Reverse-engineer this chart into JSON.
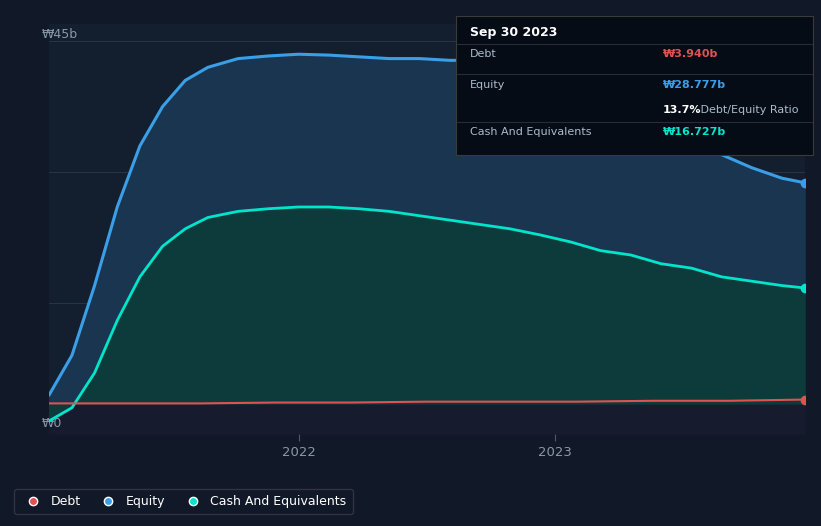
{
  "background_color": "#111827",
  "plot_bg_color": "#131e2e",
  "ylabel_45b": "₩45b",
  "ylabel_0": "₩0",
  "x_tick_labels": [
    "2022",
    "2023"
  ],
  "equity_color": "#3b9fe8",
  "cash_color": "#00e5cc",
  "debt_color": "#e05252",
  "equity_fill_color": "#1a3a5c",
  "cash_fill_color": "#0d3a3a",
  "grid_color": "#2a3a4a",
  "tooltip_bg": "#050c15",
  "tooltip_border": "#3a3a3a",
  "tooltip_title": "Sep 30 2023",
  "tooltip_debt_label": "Debt",
  "tooltip_debt_value": "₩3.940b",
  "tooltip_equity_label": "Equity",
  "tooltip_equity_value": "₩28.777b",
  "tooltip_ratio_bold": "13.7%",
  "tooltip_ratio_rest": " Debt/Equity Ratio",
  "tooltip_cash_label": "Cash And Equivalents",
  "tooltip_cash_value": "₩16.727b",
  "legend_labels": [
    "Debt",
    "Equity",
    "Cash And Equivalents"
  ],
  "y_min": 0,
  "y_max": 47,
  "equity_x": [
    0.0,
    0.03,
    0.06,
    0.09,
    0.12,
    0.15,
    0.18,
    0.21,
    0.25,
    0.29,
    0.33,
    0.37,
    0.41,
    0.45,
    0.49,
    0.53,
    0.57,
    0.61,
    0.65,
    0.69,
    0.73,
    0.77,
    0.81,
    0.85,
    0.89,
    0.93,
    0.97,
    1.0
  ],
  "equity_y": [
    4.5,
    9.0,
    17.0,
    26.0,
    33.0,
    37.5,
    40.5,
    42.0,
    43.0,
    43.3,
    43.5,
    43.4,
    43.2,
    43.0,
    43.0,
    42.8,
    42.8,
    42.5,
    42.0,
    41.2,
    40.0,
    38.5,
    36.5,
    34.0,
    32.0,
    30.5,
    29.3,
    28.777
  ],
  "cash_x": [
    0.0,
    0.03,
    0.06,
    0.09,
    0.12,
    0.15,
    0.18,
    0.21,
    0.25,
    0.29,
    0.33,
    0.37,
    0.41,
    0.45,
    0.49,
    0.53,
    0.57,
    0.61,
    0.65,
    0.69,
    0.73,
    0.77,
    0.81,
    0.85,
    0.89,
    0.93,
    0.97,
    1.0
  ],
  "cash_y": [
    1.5,
    3.0,
    7.0,
    13.0,
    18.0,
    21.5,
    23.5,
    24.8,
    25.5,
    25.8,
    26.0,
    26.0,
    25.8,
    25.5,
    25.0,
    24.5,
    24.0,
    23.5,
    22.8,
    22.0,
    21.0,
    20.5,
    19.5,
    19.0,
    18.0,
    17.5,
    17.0,
    16.727
  ],
  "debt_x": [
    0.0,
    0.1,
    0.2,
    0.3,
    0.4,
    0.5,
    0.6,
    0.7,
    0.8,
    0.9,
    1.0
  ],
  "debt_y": [
    3.5,
    3.5,
    3.5,
    3.6,
    3.6,
    3.7,
    3.7,
    3.7,
    3.8,
    3.8,
    3.94
  ]
}
